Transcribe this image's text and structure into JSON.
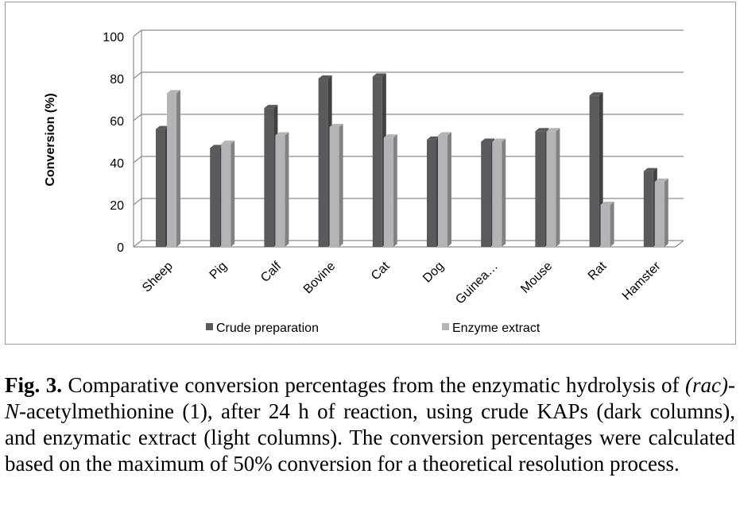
{
  "chart_data": {
    "type": "bar",
    "title": "",
    "xlabel": "",
    "ylabel": "Conversion (%)",
    "ylim": [
      0,
      100
    ],
    "yticks": [
      0,
      20,
      40,
      60,
      80,
      100
    ],
    "grid": true,
    "legend_position": "bottom",
    "categories": [
      "Sheep",
      "Pig",
      "Calf",
      "Bovine",
      "Cat",
      "Dog",
      "Guinea…",
      "Mouse",
      "Rat",
      "Hamster"
    ],
    "series": [
      {
        "name": "Crude preparation",
        "color": "#5a5a5c",
        "values": [
          56,
          47,
          66,
          80,
          81,
          51,
          50,
          55,
          72,
          36
        ]
      },
      {
        "name": "Enzyme extract",
        "color": "#b4b4b6",
        "values": [
          73,
          49,
          53,
          57,
          52,
          53,
          50,
          55,
          20,
          31
        ]
      }
    ]
  },
  "caption": {
    "fig_label": "Fig. 3.",
    "part1": " Comparative conversion percentages from the enzymatic hydrolysis of ",
    "rac": "(rac)",
    "dash": "-",
    "n": "N",
    "part2": "-acetylmethionine (1), after 24 h of reaction, using crude KAPs (dark columns), and enzymatic extract (light columns). The conversion percentages were calculated based on the maximum of 50% conversion for a theoretical resolution process."
  }
}
